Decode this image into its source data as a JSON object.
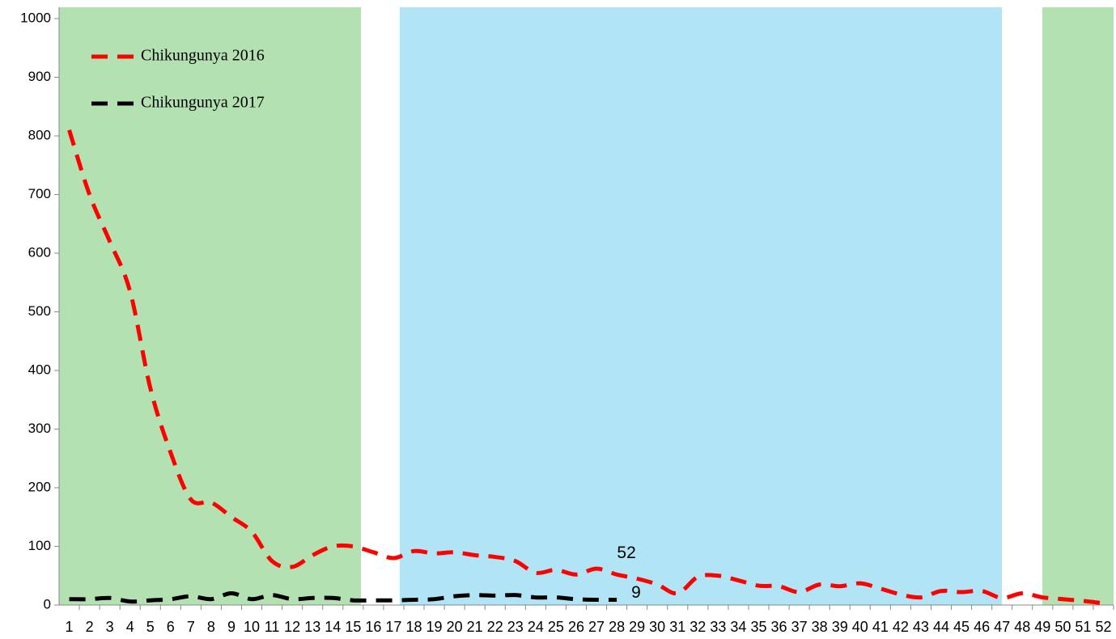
{
  "chart_data": {
    "type": "line",
    "categories": [
      "1",
      "2",
      "3",
      "4",
      "5",
      "6",
      "7",
      "8",
      "9",
      "10",
      "11",
      "12",
      "13",
      "14",
      "15",
      "16",
      "17",
      "18",
      "19",
      "20",
      "21",
      "22",
      "23",
      "24",
      "25",
      "26",
      "27",
      "28",
      "29",
      "30",
      "31",
      "32",
      "33",
      "34",
      "35",
      "36",
      "37",
      "38",
      "39",
      "40",
      "41",
      "42",
      "43",
      "44",
      "45",
      "46",
      "47",
      "48",
      "49",
      "50",
      "51",
      "52"
    ],
    "series": [
      {
        "name": "Chikungunya 2016",
        "color": "#ff0000",
        "values": [
          810,
          700,
          620,
          535,
          370,
          260,
          180,
          175,
          150,
          125,
          75,
          65,
          85,
          100,
          100,
          90,
          80,
          92,
          88,
          90,
          85,
          82,
          75,
          55,
          60,
          52,
          62,
          52,
          45,
          35,
          20,
          48,
          50,
          42,
          33,
          32,
          22,
          35,
          32,
          37,
          28,
          18,
          13,
          24,
          22,
          24,
          12,
          20,
          13,
          10,
          7,
          3
        ]
      },
      {
        "name": "Chikungunya 2017",
        "color": "#000000",
        "values": [
          10,
          10,
          12,
          6,
          8,
          10,
          15,
          10,
          20,
          10,
          17,
          10,
          12,
          12,
          8,
          8,
          8,
          9,
          10,
          15,
          17,
          16,
          17,
          13,
          13,
          10,
          9,
          9,
          null,
          null,
          null,
          null,
          null,
          null,
          null,
          null,
          null,
          null,
          null,
          null,
          null,
          null,
          null,
          null,
          null,
          null,
          null,
          null,
          null,
          null,
          null,
          null
        ]
      }
    ],
    "ylim": [
      0,
      1000
    ],
    "yticks": [
      0,
      100,
      200,
      300,
      400,
      500,
      600,
      700,
      800,
      900,
      1000
    ],
    "labeled_points": [
      28,
      28
    ]
  }
}
